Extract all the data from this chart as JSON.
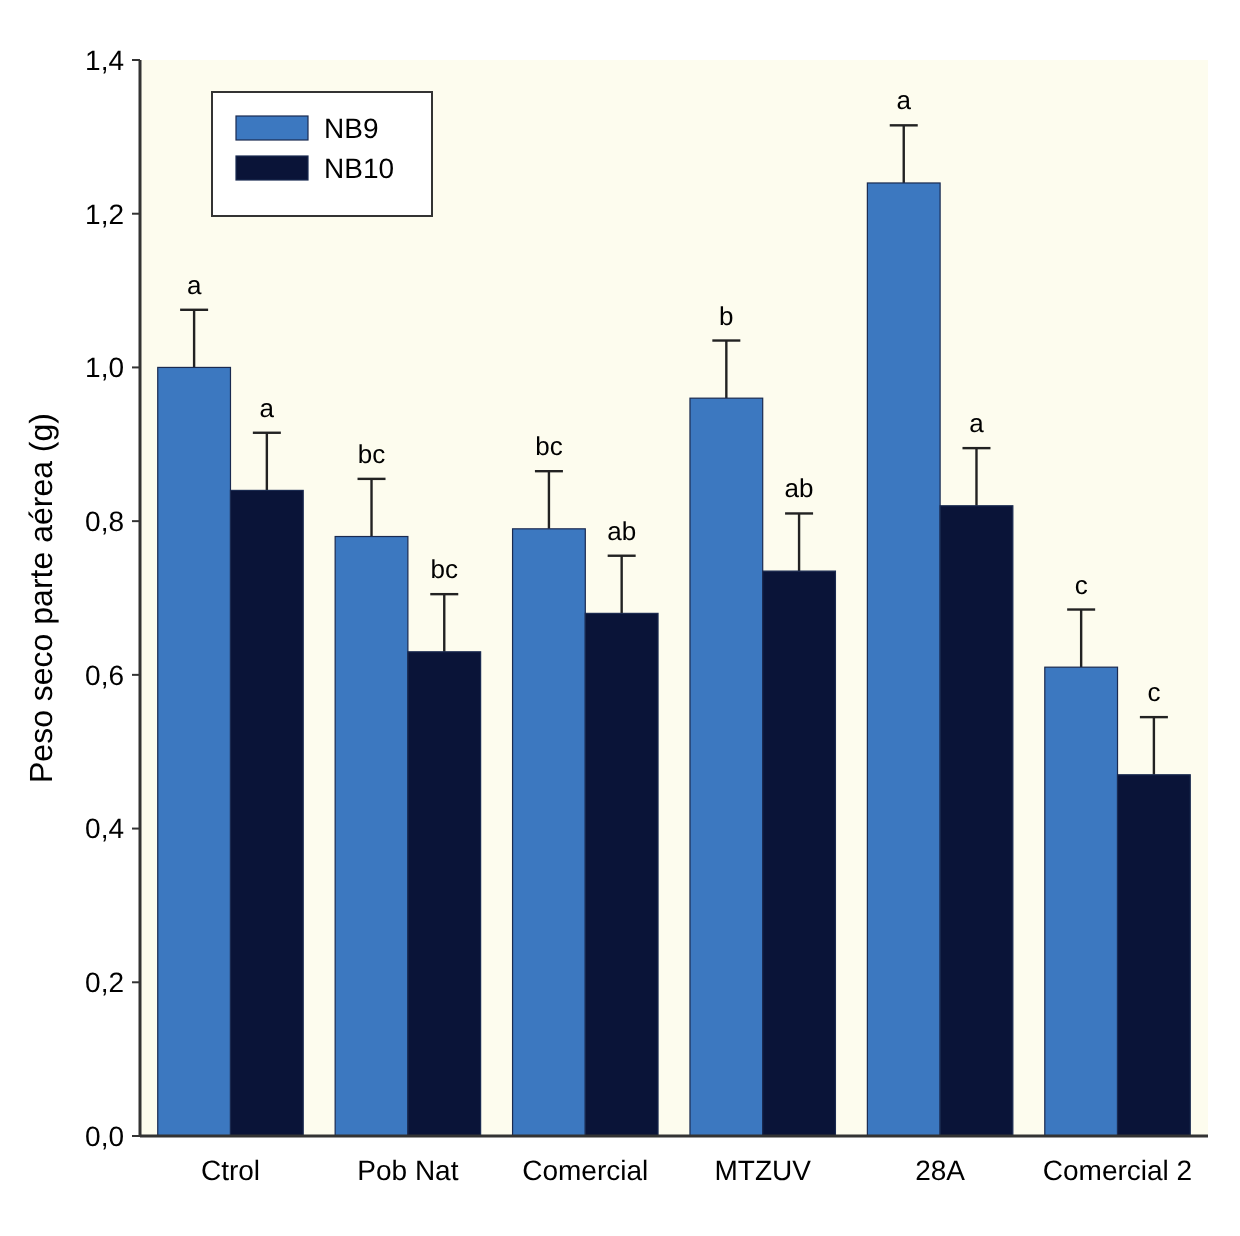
{
  "chart_data": {
    "type": "bar",
    "ylabel": "Peso seco parte aérea (g)",
    "categories": [
      "Ctrol",
      "Pob Nat",
      "Comercial",
      "MTZUV",
      "28A",
      "Comercial 2"
    ],
    "series": [
      {
        "name": "NB9",
        "color": "#3c78c0",
        "values": [
          1.0,
          0.78,
          0.79,
          0.96,
          1.24,
          0.61
        ],
        "errors": [
          0.075,
          0.075,
          0.075,
          0.075,
          0.075,
          0.075
        ]
      },
      {
        "name": "NB10",
        "color": "#0a1438",
        "values": [
          0.84,
          0.63,
          0.68,
          0.735,
          0.82,
          0.47
        ],
        "errors": [
          0.075,
          0.075,
          0.075,
          0.075,
          0.075,
          0.075
        ]
      }
    ],
    "ylim": [
      0,
      1.4
    ],
    "yticks": [
      {
        "value": 0,
        "label": "0,0"
      },
      {
        "value": 0.2,
        "label": "0,2"
      },
      {
        "value": 0.4,
        "label": "0,4"
      },
      {
        "value": 0.6,
        "label": "0,6"
      },
      {
        "value": 0.8,
        "label": "0,8"
      },
      {
        "value": 1.0,
        "label": "1,0"
      },
      {
        "value": 1.2,
        "label": "1,2"
      },
      {
        "value": 1.4,
        "label": "1,4"
      }
    ],
    "legend": "top left",
    "annotations": [
      "a",
      "a",
      "bc",
      "bc",
      "bc",
      "ab",
      "b",
      "ab",
      "a",
      "a",
      "c",
      "c"
    ]
  }
}
